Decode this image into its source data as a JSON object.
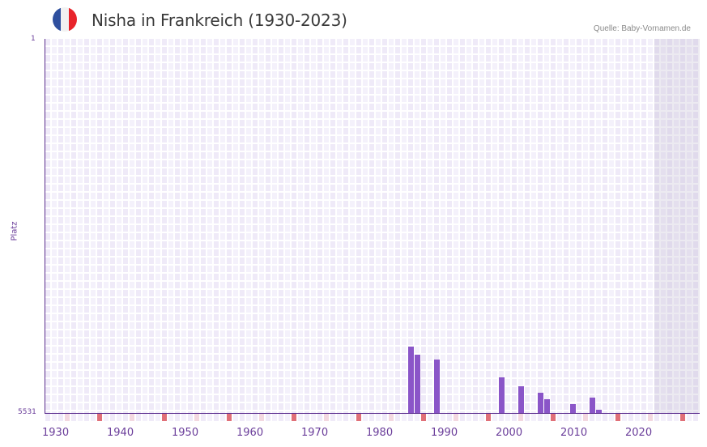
{
  "header": {
    "title": "Nisha in Frankreich (1930-2023)",
    "source": "Quelle: Baby-Vornamen.de",
    "flag": {
      "name": "france-flag",
      "colors": [
        "#2e4f9e",
        "#f2f2f2",
        "#e8242b"
      ]
    }
  },
  "colors": {
    "bar": "#8a55c8",
    "axis": "#5b2d8e",
    "label": "#6a3d9a",
    "grid_cell_a": "#efeaf8",
    "grid_cell_b": "#f4f1fb",
    "marker_decade": "#e07078",
    "marker_half": "#f3d8e0"
  },
  "chart_data": {
    "type": "bar",
    "title": "Nisha in Frankreich (1930-2023)",
    "xlabel": "",
    "ylabel": "Platz",
    "y_inverted": true,
    "ylim": [
      5531,
      1
    ],
    "y_ticks": [
      "1",
      "5531"
    ],
    "x_range": [
      1930,
      2030
    ],
    "x_ticks": [
      "1930",
      "1940",
      "1950",
      "1960",
      "1970",
      "1980",
      "1990",
      "2000",
      "2010",
      "2020"
    ],
    "future_shaded_from": 2024,
    "grid": true,
    "legend": null,
    "x": [
      1986,
      1987,
      1990,
      2000,
      2003,
      2006,
      2007,
      2011,
      2014,
      2015
    ],
    "series": [
      {
        "name": "Platz",
        "values": [
          4550,
          4670,
          4740,
          5005,
          5135,
          5230,
          5330,
          5400,
          5305,
          5480
        ]
      }
    ]
  }
}
